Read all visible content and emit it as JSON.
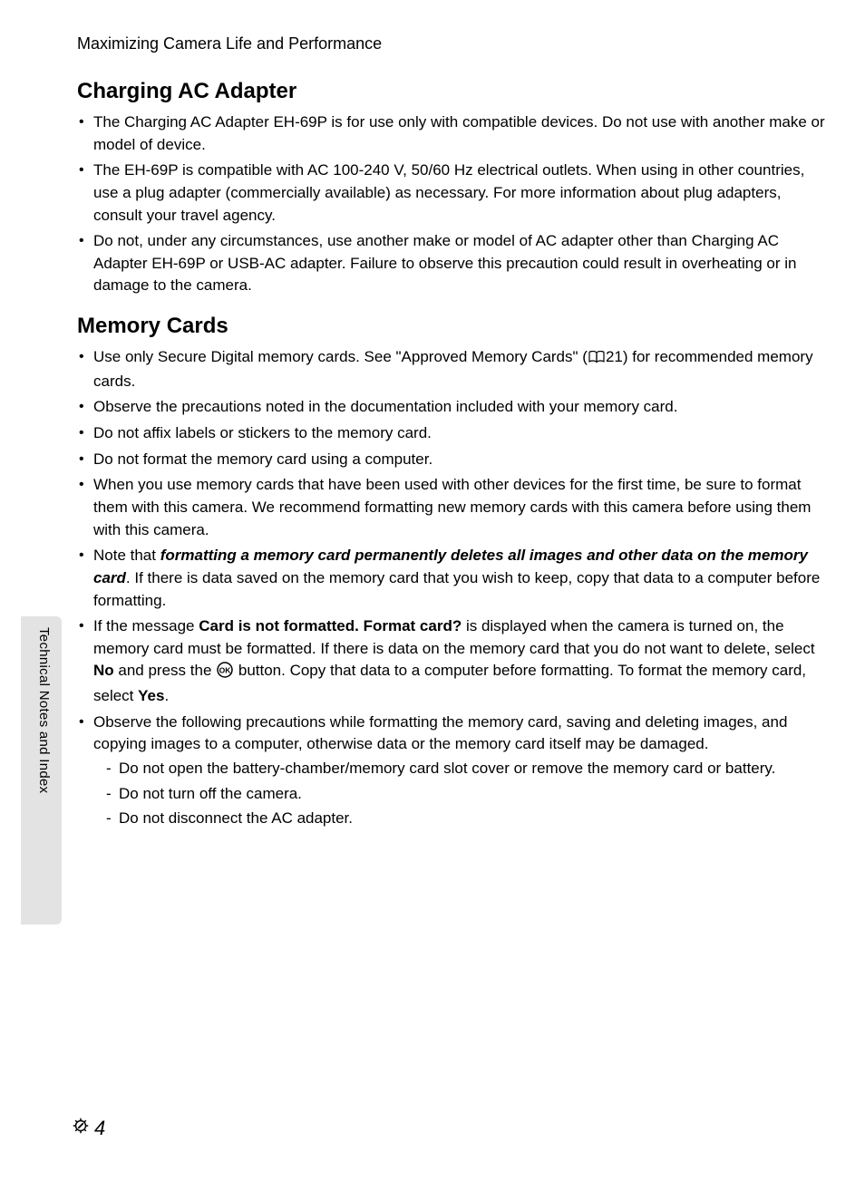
{
  "colors": {
    "text": "#000000",
    "background": "#ffffff",
    "tab_bg": "#e3e3e3"
  },
  "typography": {
    "body_fontsize_pt": 13,
    "h2_fontsize_pt": 18,
    "runhead_fontsize_pt": 13.5,
    "side_fontsize_pt": 11,
    "pagenum_fontsize_pt": 16
  },
  "running_head": "Maximizing Camera Life and Performance",
  "side_tab_label": "Technical Notes and Index",
  "page_number": "4",
  "sections": [
    {
      "heading": "Charging AC Adapter",
      "bullets": [
        {
          "text": "The Charging AC Adapter EH-69P is for use only with compatible devices. Do not use with another make or model of device."
        },
        {
          "text": "The EH-69P is compatible with AC 100-240 V, 50/60 Hz electrical outlets. When using in other countries, use a plug adapter (commercially available) as necessary. For more information about plug adapters, consult your travel agency."
        },
        {
          "text": "Do not, under any circumstances, use another make or model of AC adapter other than Charging AC Adapter EH-69P or USB-AC adapter. Failure to observe this precaution could result in overheating or in damage to the camera."
        }
      ]
    },
    {
      "heading": "Memory Cards",
      "bullets": [
        {
          "runs": [
            {
              "t": "Use only Secure Digital memory cards. See \"Approved Memory Cards\" ("
            },
            {
              "icon": "book"
            },
            {
              "t": "21) for recommended memory cards."
            }
          ]
        },
        {
          "text": "Observe the precautions noted in the documentation included with your memory card."
        },
        {
          "text": "Do not affix labels or stickers to the memory card."
        },
        {
          "text": "Do not format the memory card using a computer."
        },
        {
          "text": "When you use memory cards that have been used with other devices for the first time, be sure to format them with this camera. We recommend formatting new memory cards with this camera before using them with this camera."
        },
        {
          "runs": [
            {
              "t": "Note that "
            },
            {
              "t": "formatting a memory card permanently deletes all images and other data on the memory card",
              "style": "bi"
            },
            {
              "t": ". If there is data saved on the memory card that you wish to keep, copy that data to a computer before formatting."
            }
          ]
        },
        {
          "runs": [
            {
              "t": "If the message "
            },
            {
              "t": "Card is not formatted. Format card?",
              "style": "b"
            },
            {
              "t": " is displayed when the camera is turned on, the memory card must be formatted. If there is data on the memory card that you do not want to delete, select "
            },
            {
              "t": "No",
              "style": "b"
            },
            {
              "t": " and press the "
            },
            {
              "icon": "ok"
            },
            {
              "t": " button. Copy that data to a computer before formatting. To format the memory card, select "
            },
            {
              "t": "Yes",
              "style": "b"
            },
            {
              "t": "."
            }
          ]
        },
        {
          "text": "Observe the following precautions while formatting the memory card, saving and deleting images, and copying images to a computer, otherwise data or the memory card itself may be damaged.",
          "sub": [
            "Do not open the battery-chamber/memory card slot cover or remove the memory card or battery.",
            "Do not turn off the camera.",
            "Do not disconnect the AC adapter."
          ]
        }
      ]
    }
  ]
}
